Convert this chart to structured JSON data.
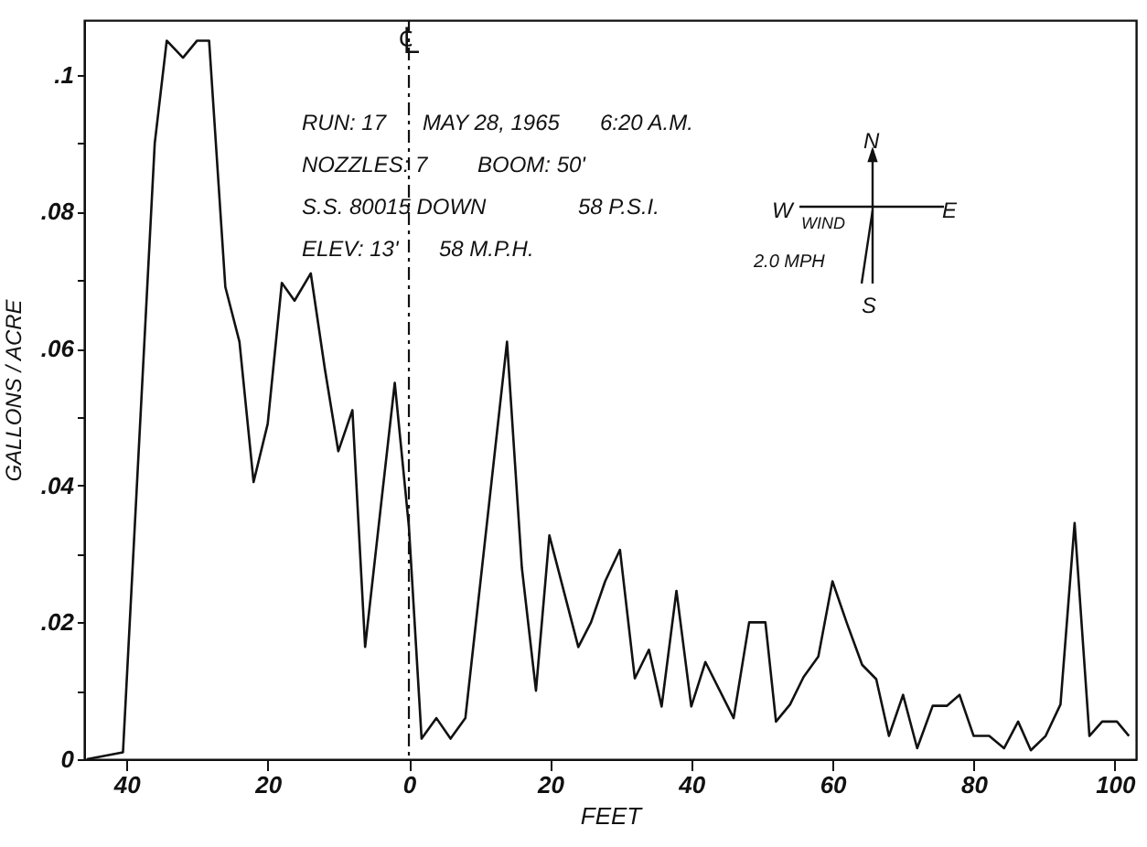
{
  "chart_data": {
    "type": "line",
    "xlabel": "FEET",
    "ylabel": "GALLONS / ACRE",
    "x": [
      -45.6,
      -40.5,
      -36,
      -34.3,
      -32,
      -30,
      -28.3,
      -26,
      -24,
      -22,
      -20,
      -18,
      -16.2,
      -13.9,
      -11.9,
      -10,
      -8,
      -6.2,
      -3.9,
      -2,
      0,
      1.8,
      3.9,
      5.9,
      8,
      13.9,
      16,
      18,
      19.9,
      24,
      25.8,
      27.8,
      29.9,
      32,
      34,
      35.8,
      37.9,
      40,
      42,
      46,
      48.2,
      50.5,
      52,
      54,
      55.9,
      58,
      60,
      62,
      64.2,
      66.2,
      68,
      70,
      72,
      74.2,
      76.2,
      78,
      80,
      82.2,
      84.3,
      86.3,
      88.1,
      90.2,
      92.3,
      94.3,
      96.4,
      98.2,
      100.3,
      102
    ],
    "series": [
      {
        "color": "#111111",
        "values": [
          0,
          0.001,
          0.09,
          0.105,
          0.1025,
          0.105,
          0.105,
          0.069,
          0.061,
          0.0405,
          0.049,
          0.0696,
          0.067,
          0.071,
          0.057,
          0.045,
          0.051,
          0.0164,
          0.0376,
          0.055,
          0.034,
          0.003,
          0.006,
          0.003,
          0.006,
          0.061,
          0.028,
          0.01,
          0.0327,
          0.0164,
          0.02,
          0.026,
          0.0306,
          0.0118,
          0.016,
          0.0077,
          0.0246,
          0.0077,
          0.0142,
          0.006,
          0.02,
          0.02,
          0.0055,
          0.008,
          0.012,
          0.015,
          0.026,
          0.02,
          0.0138,
          0.0117,
          0.0034,
          0.0094,
          0.0016,
          0.0078,
          0.0078,
          0.0094,
          0.0034,
          0.0034,
          0.0016,
          0.0055,
          0.0013,
          0.0034,
          0.008,
          0.0345,
          0.0034,
          0.0055,
          0.0055,
          0.0034
        ]
      }
    ],
    "xlim": [
      -46,
      103
    ],
    "xticks": [
      {
        "value": -40,
        "label": "40"
      },
      {
        "value": -20,
        "label": "20"
      },
      0,
      20,
      40,
      60,
      80,
      100
    ],
    "ylim": [
      0,
      0.108
    ],
    "yticks": [
      {
        "value": 0,
        "label": "0"
      },
      {
        "value": 0.01,
        "label": null
      },
      {
        "value": 0.02,
        "label": ".02"
      },
      {
        "value": 0.03,
        "label": null
      },
      {
        "value": 0.04,
        "label": ".04"
      },
      {
        "value": 0.05,
        "label": null
      },
      {
        "value": 0.06,
        "label": ".06"
      },
      {
        "value": 0.07,
        "label": null
      },
      {
        "value": 0.08,
        "label": ".08"
      },
      {
        "value": 0.09,
        "label": null
      },
      {
        "value": 0.1,
        "label": ".1"
      }
    ],
    "ref_lines": [
      {
        "axis": "x",
        "value": 0,
        "label": "℄",
        "line_style": "dashed"
      }
    ],
    "annotations": [
      "RUN: 17",
      "MAY 28, 1965",
      "6:20 A.M.",
      "NOZZLES: 7",
      "BOOM: 50'",
      "S.S. 80015 DOWN",
      "58 P.S.I.",
      "ELEV: 13'",
      "58 M.P.H.",
      "N",
      "W",
      "E",
      "S",
      "WIND",
      "2.0 MPH"
    ],
    "grid": false,
    "marker": "none",
    "line_style": "solid"
  }
}
